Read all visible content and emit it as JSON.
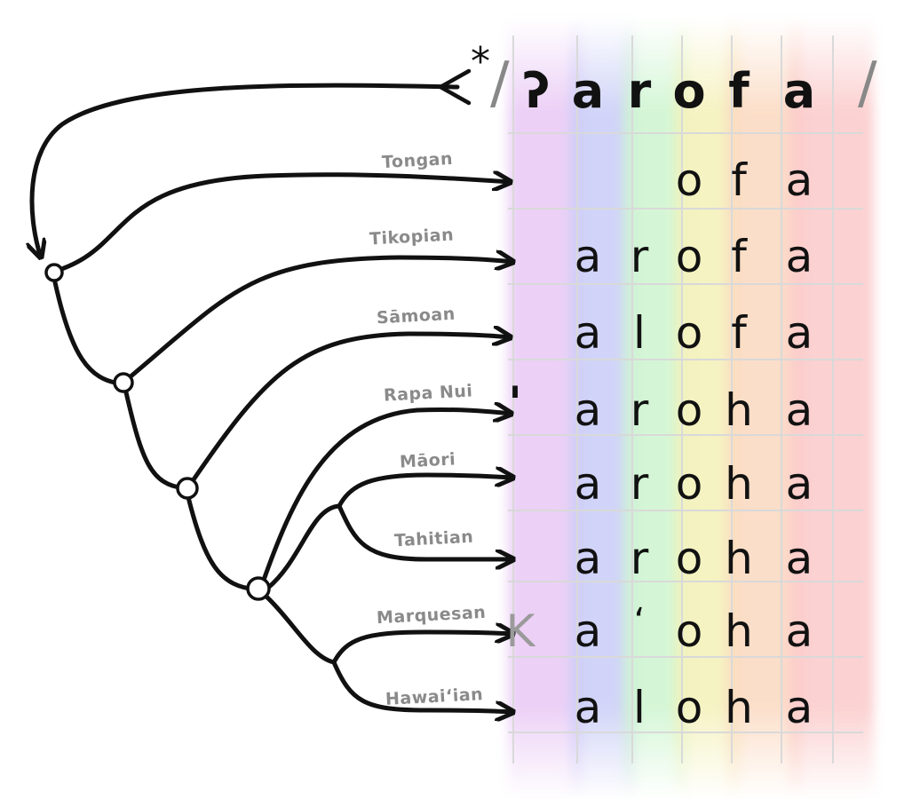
{
  "proto": {
    "marker": "*",
    "open_slash": "/",
    "close_slash": "/",
    "segments": [
      "ʔ",
      "a",
      "r",
      "o",
      "f",
      "a"
    ]
  },
  "languages": [
    {
      "name": "Tongan",
      "segments": [
        "",
        "",
        "",
        "o",
        "f",
        "a"
      ]
    },
    {
      "name": "Tikopian",
      "segments": [
        "",
        "a",
        "r",
        "o",
        "f",
        "a"
      ]
    },
    {
      "name": "Sāmoan",
      "segments": [
        "",
        "a",
        "l",
        "o",
        "f",
        "a"
      ]
    },
    {
      "name": "Rapa Nui",
      "segments": [
        "'",
        "a",
        "r",
        "o",
        "h",
        "a"
      ]
    },
    {
      "name": "Māori",
      "segments": [
        "",
        "a",
        "r",
        "o",
        "h",
        "a"
      ]
    },
    {
      "name": "Tahitian",
      "segments": [
        "",
        "a",
        "r",
        "o",
        "h",
        "a"
      ]
    },
    {
      "name": "Marquesan",
      "segments": [
        "K",
        "a",
        "ʻ",
        "o",
        "h",
        "a"
      ]
    },
    {
      "name": "Hawaiʻian",
      "segments": [
        "",
        "a",
        "l",
        "o",
        "h",
        "a"
      ]
    }
  ],
  "colors": {
    "bands": [
      "#e9c8f5",
      "#c9cdf7",
      "#cdf5cf",
      "#f4f1b8",
      "#fbd9c0",
      "#fbc9c9"
    ],
    "label": "#8a8a8a",
    "ink": "#111111",
    "grid": "#d9d9d9"
  }
}
